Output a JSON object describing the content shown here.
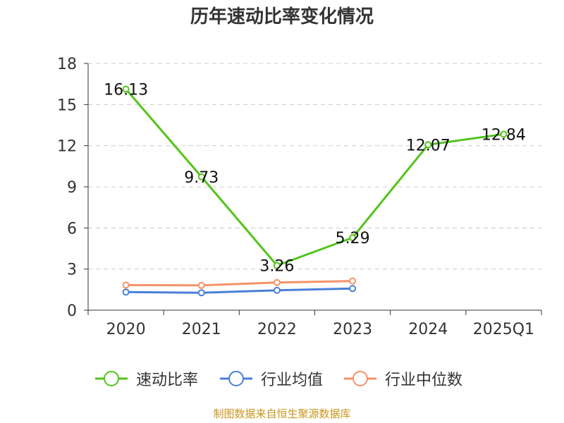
{
  "chart_data": {
    "type": "line",
    "title": "历年速动比率变化情况",
    "categories": [
      "2020",
      "2021",
      "2022",
      "2023",
      "2024",
      "2025Q1"
    ],
    "series": [
      {
        "name": "速动比率",
        "color": "#52c41a",
        "values": [
          16.13,
          9.73,
          3.26,
          5.29,
          12.07,
          12.84
        ],
        "labels": [
          "16.13",
          "9.73",
          "3.26",
          "5.29",
          "12.07",
          "12.84"
        ]
      },
      {
        "name": "行业均值",
        "color": "#4a7fd9",
        "values": [
          1.32,
          1.27,
          1.45,
          1.58,
          null,
          null
        ]
      },
      {
        "name": "行业中位数",
        "color": "#f4936b",
        "values": [
          1.83,
          1.81,
          2.02,
          2.13,
          null,
          null
        ]
      }
    ],
    "yticks": [
      "0",
      "3",
      "6",
      "9",
      "12",
      "15",
      "18"
    ],
    "ylim": [
      0,
      18
    ],
    "grid": true,
    "legend_position": "bottom",
    "source": "制图数据来自恒生聚源数据库"
  }
}
